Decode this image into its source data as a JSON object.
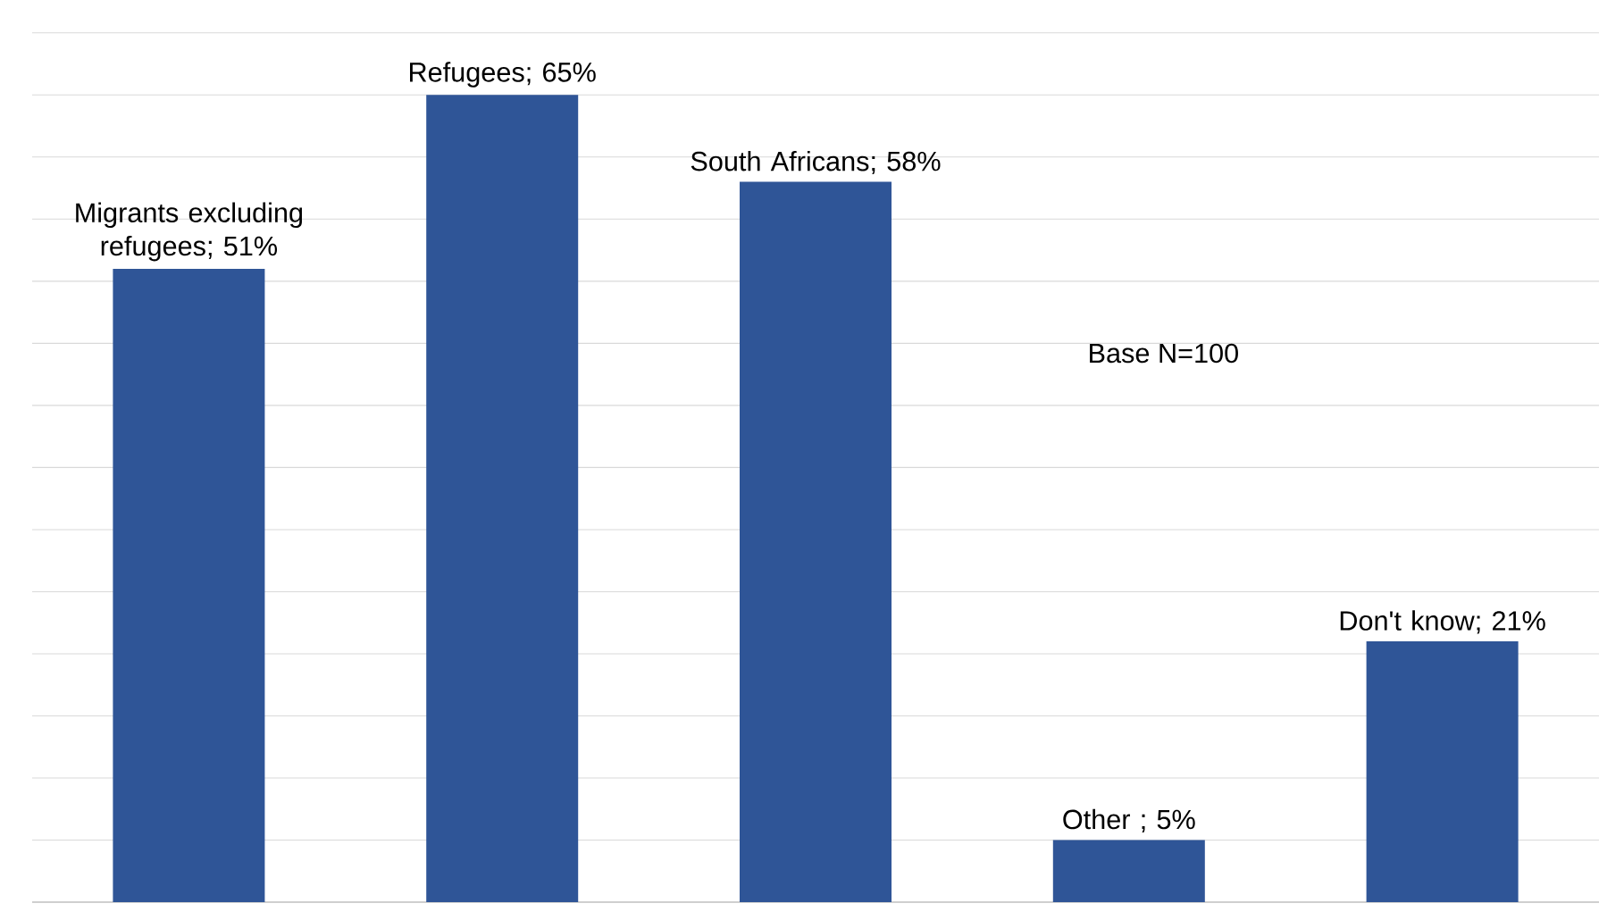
{
  "chart_data": {
    "type": "bar",
    "categories": [
      null,
      null,
      null,
      null,
      null
    ],
    "values": [
      51,
      65,
      58,
      5,
      21
    ],
    "value_labels": [
      "Migrants excluding refugees; 51%",
      "Refugees; 65%",
      "South Africans; 58%",
      "Other ; 5%",
      "Don't know; 21%"
    ],
    "color": "#2f5597",
    "grid": "y",
    "annotations": [
      "Base N=100"
    ]
  }
}
